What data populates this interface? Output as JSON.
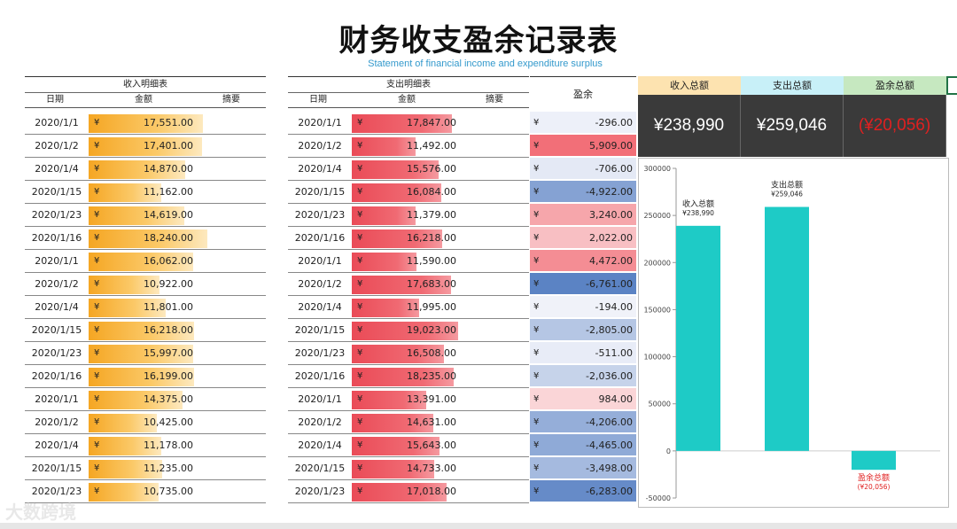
{
  "title": "财务收支盈余记录表",
  "subtitle": "Statement of financial income and expenditure surplus",
  "income": {
    "header": "收入明细表",
    "col_date": "日期",
    "col_amount": "金额",
    "col_note": "摘要",
    "rows": [
      {
        "date": "2020/1/1",
        "amount": "17,551.00",
        "v": 17551
      },
      {
        "date": "2020/1/2",
        "amount": "17,401.00",
        "v": 17401
      },
      {
        "date": "2020/1/4",
        "amount": "14,870.00",
        "v": 14870
      },
      {
        "date": "2020/1/15",
        "amount": "11,162.00",
        "v": 11162
      },
      {
        "date": "2020/1/23",
        "amount": "14,619.00",
        "v": 14619
      },
      {
        "date": "2020/1/16",
        "amount": "18,240.00",
        "v": 18240
      },
      {
        "date": "2020/1/1",
        "amount": "16,062.00",
        "v": 16062
      },
      {
        "date": "2020/1/2",
        "amount": "10,922.00",
        "v": 10922
      },
      {
        "date": "2020/1/4",
        "amount": "11,801.00",
        "v": 11801
      },
      {
        "date": "2020/1/15",
        "amount": "16,218.00",
        "v": 16218
      },
      {
        "date": "2020/1/23",
        "amount": "15,997.00",
        "v": 15997
      },
      {
        "date": "2020/1/16",
        "amount": "16,199.00",
        "v": 16199
      },
      {
        "date": "2020/1/1",
        "amount": "14,375.00",
        "v": 14375
      },
      {
        "date": "2020/1/2",
        "amount": "10,425.00",
        "v": 10425
      },
      {
        "date": "2020/1/4",
        "amount": "11,178.00",
        "v": 11178
      },
      {
        "date": "2020/1/15",
        "amount": "11,235.00",
        "v": 11235
      },
      {
        "date": "2020/1/23",
        "amount": "10,735.00",
        "v": 10735
      }
    ]
  },
  "expense": {
    "header": "支出明细表",
    "col_date": "日期",
    "col_amount": "金额",
    "col_note": "摘要",
    "rows": [
      {
        "date": "2020/1/1",
        "amount": "17,847.00",
        "v": 17847
      },
      {
        "date": "2020/1/2",
        "amount": "11,492.00",
        "v": 11492
      },
      {
        "date": "2020/1/4",
        "amount": "15,576.00",
        "v": 15576
      },
      {
        "date": "2020/1/15",
        "amount": "16,084.00",
        "v": 16084
      },
      {
        "date": "2020/1/23",
        "amount": "11,379.00",
        "v": 11379
      },
      {
        "date": "2020/1/16",
        "amount": "16,218.00",
        "v": 16218
      },
      {
        "date": "2020/1/1",
        "amount": "11,590.00",
        "v": 11590
      },
      {
        "date": "2020/1/2",
        "amount": "17,683.00",
        "v": 17683
      },
      {
        "date": "2020/1/4",
        "amount": "11,995.00",
        "v": 11995
      },
      {
        "date": "2020/1/15",
        "amount": "19,023.00",
        "v": 19023
      },
      {
        "date": "2020/1/23",
        "amount": "16,508.00",
        "v": 16508
      },
      {
        "date": "2020/1/16",
        "amount": "18,235.00",
        "v": 18235
      },
      {
        "date": "2020/1/1",
        "amount": "13,391.00",
        "v": 13391
      },
      {
        "date": "2020/1/2",
        "amount": "14,631.00",
        "v": 14631
      },
      {
        "date": "2020/1/4",
        "amount": "15,643.00",
        "v": 15643
      },
      {
        "date": "2020/1/15",
        "amount": "14,733.00",
        "v": 14733
      },
      {
        "date": "2020/1/23",
        "amount": "17,018.00",
        "v": 17018
      }
    ]
  },
  "surplus": {
    "header": "盈余",
    "rows": [
      {
        "amount": "-296.00",
        "v": -296
      },
      {
        "amount": "5,909.00",
        "v": 5909
      },
      {
        "amount": "-706.00",
        "v": -706
      },
      {
        "amount": "-4,922.00",
        "v": -4922
      },
      {
        "amount": "3,240.00",
        "v": 3240
      },
      {
        "amount": "2,022.00",
        "v": 2022
      },
      {
        "amount": "4,472.00",
        "v": 4472
      },
      {
        "amount": "-6,761.00",
        "v": -6761
      },
      {
        "amount": "-194.00",
        "v": -194
      },
      {
        "amount": "-2,805.00",
        "v": -2805
      },
      {
        "amount": "-511.00",
        "v": -511
      },
      {
        "amount": "-2,036.00",
        "v": -2036
      },
      {
        "amount": "984.00",
        "v": 984
      },
      {
        "amount": "-4,206.00",
        "v": -4206
      },
      {
        "amount": "-4,465.00",
        "v": -4465
      },
      {
        "amount": "-3,498.00",
        "v": -3498
      },
      {
        "amount": "-6,283.00",
        "v": -6283
      }
    ]
  },
  "currency_symbol": "¥",
  "summary": {
    "income_label": "收入总额",
    "income_value": "¥238,990",
    "expense_label": "支出总额",
    "expense_value": "¥259,046",
    "surplus_label": "盈余总额",
    "surplus_value": "(¥20,056)"
  },
  "colors": {
    "income_head": "#fde3b0",
    "expense_head": "#c8f0f8",
    "surplus_head": "#c6e8c0",
    "chart_bar": "#1ecbc6",
    "negative_text": "#e02020"
  },
  "chart_data": {
    "type": "bar",
    "categories": [
      "收入总额",
      "支出总额",
      "盈余总额"
    ],
    "values": [
      238990,
      259046,
      -20056
    ],
    "data_labels": [
      "¥238,990",
      "¥259,046",
      "(¥20,056)"
    ],
    "ylim": [
      -50000,
      300000
    ],
    "yticks": [
      "300000",
      "250000",
      "200000",
      "150000",
      "100000",
      "50000",
      "0",
      "-50000"
    ],
    "grid": false
  },
  "watermark": "大数跨境"
}
